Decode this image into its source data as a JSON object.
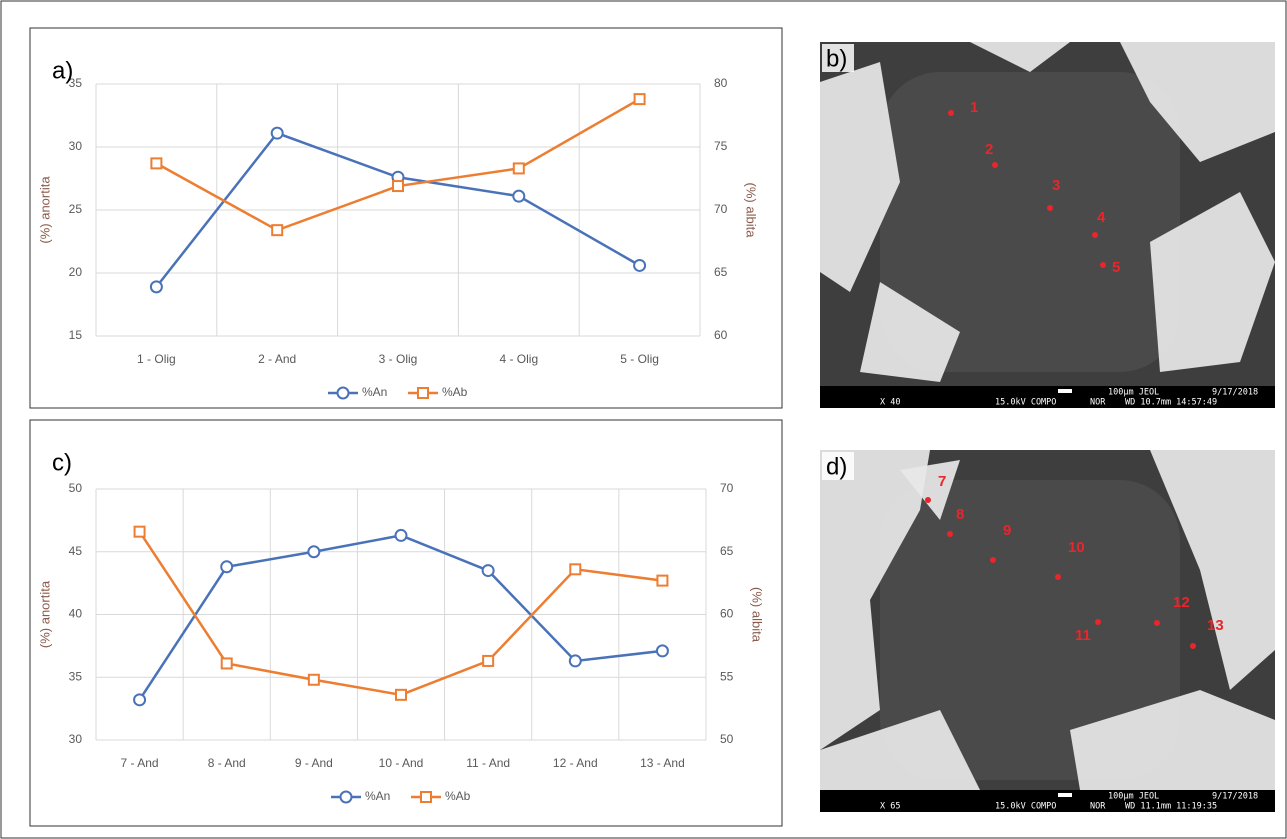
{
  "chart_data": [
    {
      "type": "line",
      "label": "a)",
      "ylabel": "(%) anortita",
      "y2label": "(%) albita",
      "categories": [
        "1 - Olig",
        "2 - And",
        "3 - Olig",
        "4 - Olig",
        "5 - Olig"
      ],
      "series": [
        {
          "name": "%An",
          "color": "#4a72b8",
          "marker": "circle",
          "values": [
            18.9,
            31.1,
            27.6,
            26.1,
            20.6
          ]
        },
        {
          "name": "%Ab",
          "color": "#ed7d31",
          "marker": "square",
          "axis": "y2",
          "values": [
            73.7,
            68.4,
            71.9,
            73.3,
            78.8
          ]
        }
      ],
      "ylim": [
        15,
        35
      ],
      "yticks": [
        15,
        20,
        25,
        30,
        35
      ],
      "y2lim": [
        60,
        80
      ],
      "y2ticks": [
        60,
        65,
        70,
        75,
        80
      ],
      "grid": true,
      "legend": "bottom"
    },
    {
      "type": "line",
      "label": "c)",
      "ylabel": "(%) anortita",
      "y2label": "(%) albita",
      "categories": [
        "7 - And",
        "8 - And",
        "9 - And",
        "10 - And",
        "11 - And",
        "12 - And",
        "13 - And"
      ],
      "series": [
        {
          "name": "%An",
          "color": "#4a72b8",
          "marker": "circle",
          "values": [
            33.2,
            43.8,
            45.0,
            46.3,
            43.5,
            36.3,
            37.1
          ]
        },
        {
          "name": "%Ab",
          "color": "#ed7d31",
          "marker": "square",
          "axis": "y2",
          "values": [
            66.6,
            56.1,
            54.8,
            53.6,
            56.3,
            63.6,
            62.7
          ]
        }
      ],
      "ylim": [
        30,
        50
      ],
      "yticks": [
        30,
        35,
        40,
        45,
        50
      ],
      "y2lim": [
        50,
        70
      ],
      "y2ticks": [
        50,
        55,
        60,
        65,
        70
      ],
      "grid": true,
      "legend": "bottom"
    }
  ],
  "images": [
    {
      "label": "b)",
      "points": [
        "1",
        "2",
        "3",
        "4",
        "5"
      ],
      "scale": "100µm JEOL",
      "date": "9/17/2018",
      "footer": [
        "X 40",
        "15.0kV COMPO",
        "NOR",
        "WD 10.7mm 14:57:49"
      ]
    },
    {
      "label": "d)",
      "points": [
        "7",
        "8",
        "9",
        "10",
        "11",
        "12",
        "13"
      ],
      "scale": "100µm JEOL",
      "date": "9/17/2018",
      "footer": [
        "X 65",
        "15.0kV COMPO",
        "NOR",
        "WD 11.1mm 11:19:35"
      ]
    }
  ]
}
